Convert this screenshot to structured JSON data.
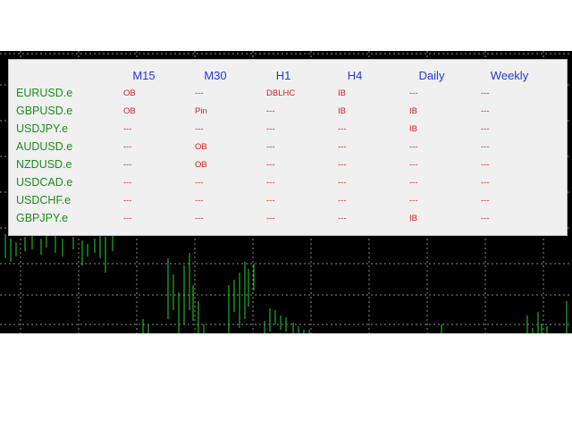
{
  "dashboard": {
    "columns": [
      "M15",
      "M30",
      "H1",
      "H4",
      "Daily",
      "Weekly"
    ],
    "rows": [
      {
        "symbol": "EURUSD.e",
        "values": [
          "OB",
          "---",
          "DBLHC",
          "IB",
          "---",
          "---"
        ]
      },
      {
        "symbol": "GBPUSD.e",
        "values": [
          "OB",
          "Pin",
          "---",
          "IB",
          "IB",
          "---"
        ]
      },
      {
        "symbol": "USDJPY.e",
        "values": [
          "---",
          "---",
          "---",
          "---",
          "IB",
          "---"
        ]
      },
      {
        "symbol": "AUDUSD.e",
        "values": [
          "---",
          "OB",
          "---",
          "---",
          "---",
          "---"
        ]
      },
      {
        "symbol": "NZDUSD.e",
        "values": [
          "---",
          "OB",
          "---",
          "---",
          "---",
          "---"
        ]
      },
      {
        "symbol": "USDCAD.e",
        "values": [
          "---",
          "---",
          "---",
          "---",
          "---",
          "---"
        ]
      },
      {
        "symbol": "USDCHF.e",
        "values": [
          "---",
          "---",
          "---",
          "---",
          "---",
          "---"
        ]
      },
      {
        "symbol": "GBPJPY.e",
        "values": [
          "---",
          "---",
          "---",
          "---",
          "IB",
          "---"
        ]
      }
    ]
  },
  "colors": {
    "chart_background": "#000000",
    "grid": "#8c8c8c",
    "candles": "#22d62a",
    "panel_background": "#f0f0f0",
    "header_text": "#1f3bd4",
    "symbol_text": "#1e8a1e",
    "signal_text": "#d21f1f"
  }
}
